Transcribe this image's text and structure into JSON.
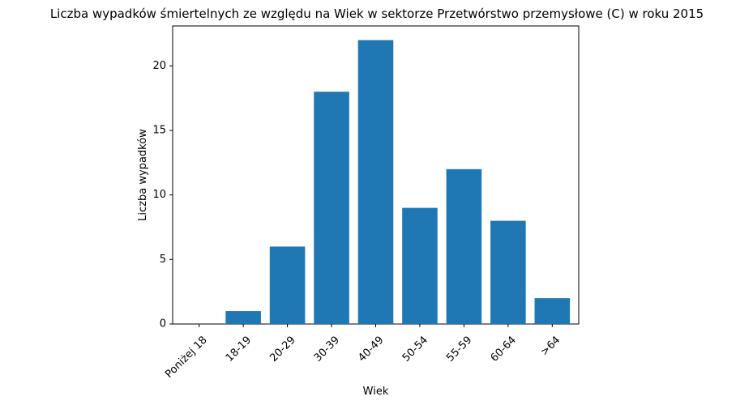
{
  "chart_data": {
    "type": "bar",
    "title": "Liczba wypadków śmiertelnych ze względu na Wiek w sektorze Przetwórstwo przemysłowe (C)   w roku 2015",
    "xlabel": "Wiek",
    "ylabel": "Liczba wypadków",
    "categories": [
      "Poniżej 18",
      "18-19",
      "20-29",
      "30-39",
      "40-49",
      "50-54",
      "55-59",
      "60-64",
      ">64"
    ],
    "values": [
      0,
      1,
      6,
      18,
      22,
      9,
      12,
      8,
      2
    ],
    "ylim": [
      0,
      23.1
    ],
    "yticks": [
      0,
      5,
      10,
      15,
      20
    ],
    "grid": false,
    "bar_color": "#1f77b4"
  }
}
